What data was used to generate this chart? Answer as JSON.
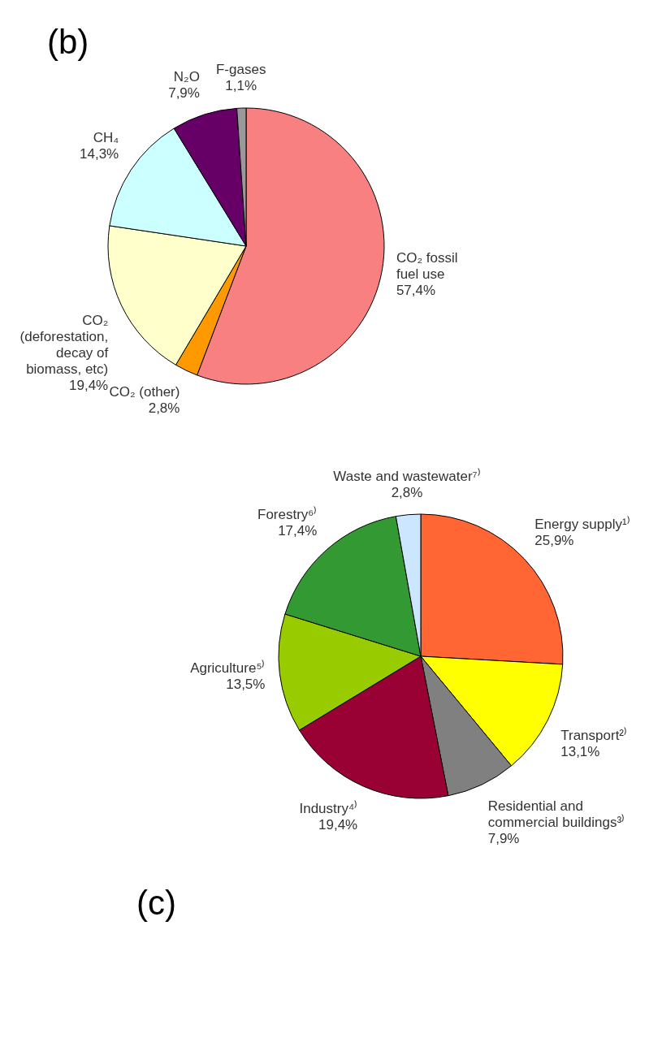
{
  "chart_data": [
    {
      "type": "pie",
      "title": "(b)",
      "categories": [
        "CO₂ fossil fuel use",
        "CO₂ (other)",
        "CO₂ (deforestation, decay of biomass, etc)",
        "CH₄",
        "N₂O",
        "F-gases"
      ],
      "values": [
        57.4,
        2.8,
        19.4,
        14.3,
        7.9,
        1.1
      ],
      "value_labels": [
        "57,4%",
        "2,8%",
        "19,4%",
        "14,3%",
        "7,9%",
        "1,1%"
      ],
      "colors": [
        "#f88080",
        "#ff9900",
        "#ffffcc",
        "#ccffff",
        "#660066",
        "#999999"
      ]
    },
    {
      "type": "pie",
      "title": "(c)",
      "categories": [
        "Energy supply¹⁾",
        "Transport²⁾",
        "Residential and commercial buildings³⁾",
        "Industry⁴⁾",
        "Agriculture⁵⁾",
        "Forestry⁶⁾",
        "Waste and wastewater⁷⁾"
      ],
      "values": [
        25.9,
        13.1,
        7.9,
        19.4,
        13.5,
        17.4,
        2.8
      ],
      "value_labels": [
        "25,9%",
        "13,1%",
        "7,9%",
        "19,4%",
        "13,5%",
        "17,4%",
        "2,8%"
      ],
      "colors": [
        "#ff6633",
        "#ffff00",
        "#808080",
        "#990033",
        "#99cc00",
        "#339933",
        "#cce6ff"
      ]
    }
  ]
}
